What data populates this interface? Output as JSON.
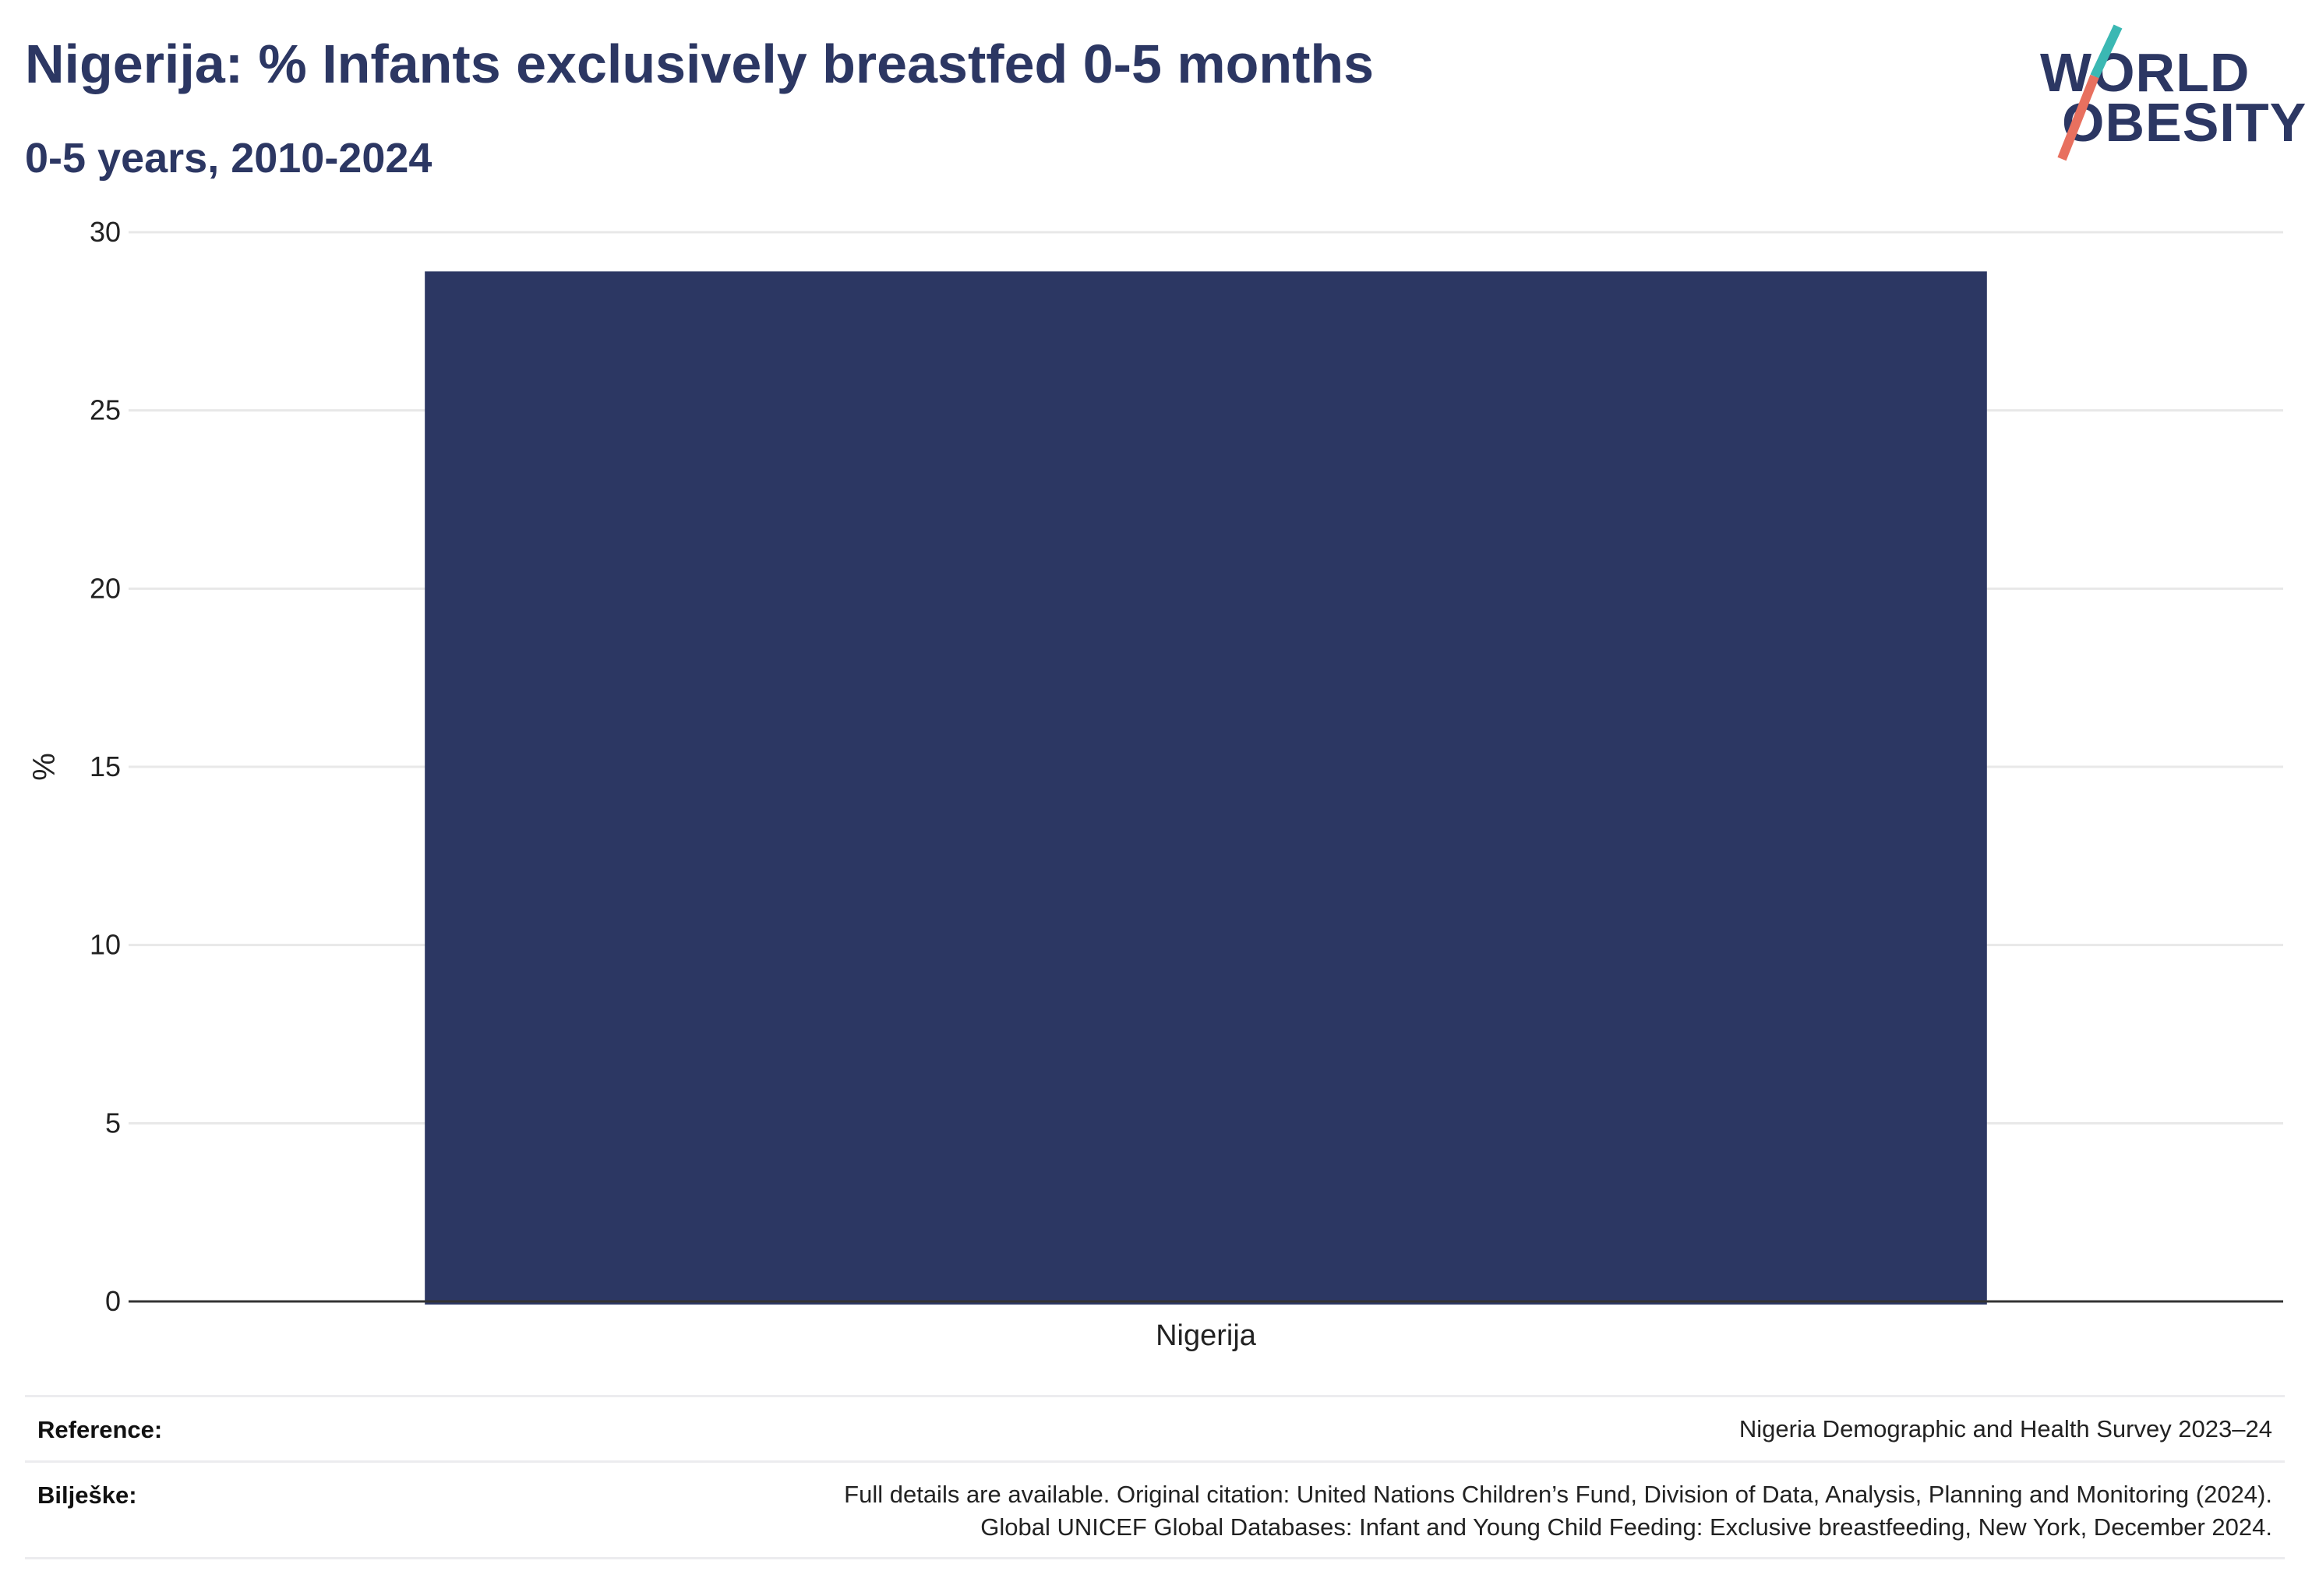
{
  "header": {
    "title": "Nigerija: % Infants exclusively breastfed 0-5 months",
    "subtitle": "0-5 years, 2010-2024"
  },
  "logo": {
    "line1": "WORLD",
    "line2": "OBESITY",
    "accent_colors": [
      "#3bb8b3",
      "#e8705f"
    ]
  },
  "colors": {
    "bar": "#2c3763",
    "text": "#2c3763",
    "grid": "#e8e8e8",
    "axis": "#333333"
  },
  "chart_data": {
    "type": "bar",
    "categories": [
      "Nigerija"
    ],
    "values": [
      28.9
    ],
    "ylabel": "%",
    "ylim": [
      0,
      30
    ],
    "yticks": [
      0,
      5,
      10,
      15,
      20,
      25,
      30
    ],
    "grid": true,
    "legend": "none"
  },
  "footer": {
    "reference_label": "Reference:",
    "reference_value": "Nigeria Demographic and Health Survey 2023–24",
    "notes_label": "Bilješke:",
    "notes_line1": "Full details are available. Original citation: United Nations Children’s Fund, Division of Data, Analysis, Planning and Monitoring (2024).",
    "notes_line2": "Global UNICEF Global Databases: Infant and Young Child Feeding: Exclusive breastfeeding, New York, December 2024."
  }
}
